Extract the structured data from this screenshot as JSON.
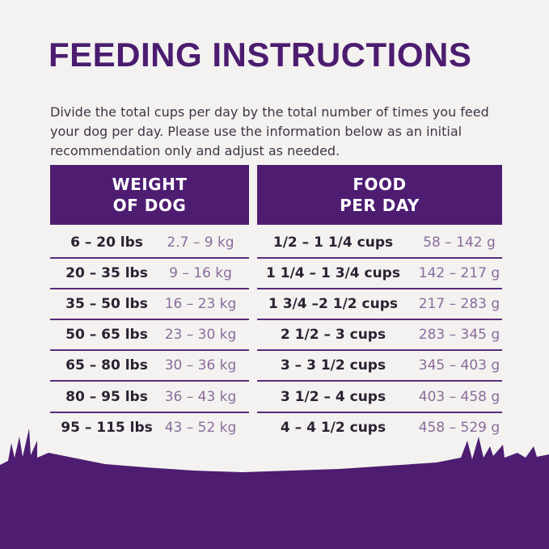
{
  "header": {
    "title": "FEEDING INSTRUCTIONS",
    "intro": "Divide the total cups per day by the total number of times you feed your dog per day. Please use the information below as an initial recommendation only and adjust as needed."
  },
  "table": {
    "headers": [
      [
        "WEIGHT",
        "OF DOG"
      ],
      [
        "FOOD",
        "PER DAY"
      ]
    ],
    "rows": [
      [
        "6 – 20 lbs",
        "2.7 – 9 kg",
        "1/2 – 1 1/4 cups",
        "58 – 142 g"
      ],
      [
        "20 – 35 lbs",
        "9 – 16 kg",
        "1 1/4 – 1 3/4 cups",
        "142 – 217 g"
      ],
      [
        "35 – 50 lbs",
        "16 – 23 kg",
        "1 3/4 –2 1/2 cups",
        "217 – 283 g"
      ],
      [
        "50 – 65 lbs",
        "23 – 30 kg",
        "2 1/2 – 3 cups",
        "283 – 345 g"
      ],
      [
        "65 – 80 lbs",
        "30 – 36 kg",
        "3 – 3 1/2 cups",
        "345 – 403 g"
      ],
      [
        "80 – 95 lbs",
        "36 – 43 kg",
        "3 1/2 – 4 cups",
        "403 – 458 g"
      ],
      [
        "95 – 115 lbs",
        "43 – 52 kg",
        "4 – 4 1/2 cups",
        "458 – 529 g"
      ]
    ]
  }
}
